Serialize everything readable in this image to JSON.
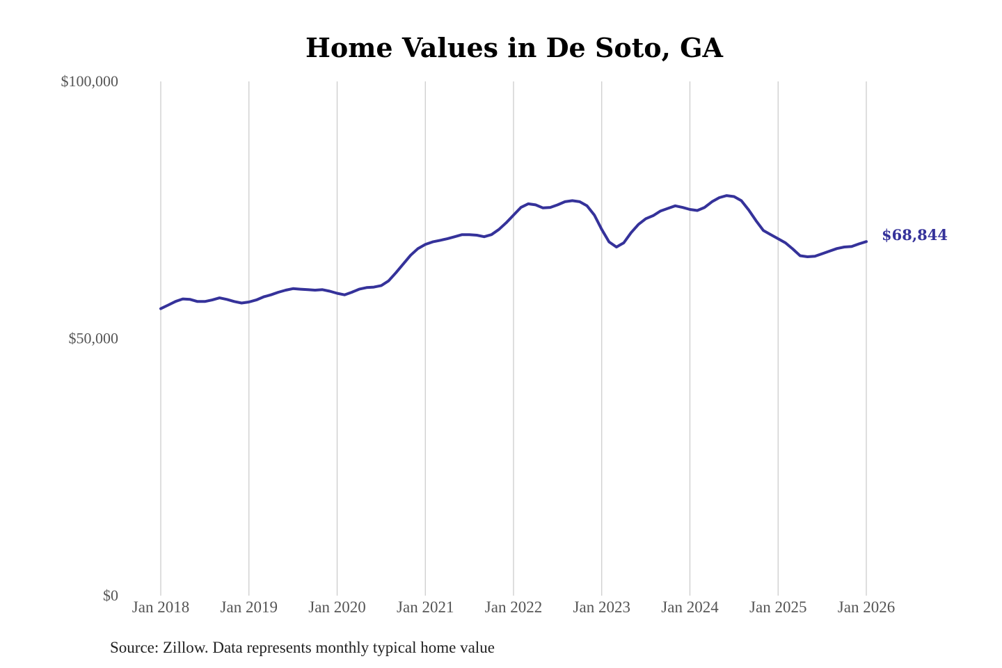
{
  "chart_data": {
    "type": "line",
    "title": "Home Values in De Soto, GA",
    "source": "Source: Zillow. Data represents monthly typical home value",
    "xlabel": "",
    "ylabel": "",
    "ylim": [
      0,
      100000
    ],
    "yticks": [
      0,
      50000,
      100000
    ],
    "ytick_labels": [
      "$0",
      "$50,000",
      "$100,000"
    ],
    "xticks": [
      "2018-01",
      "2019-01",
      "2020-01",
      "2021-01",
      "2022-01",
      "2023-01",
      "2024-01",
      "2025-01",
      "2026-01"
    ],
    "xtick_labels": [
      "Jan 2018",
      "Jan 2019",
      "Jan 2020",
      "Jan 2021",
      "Jan 2022",
      "Jan 2023",
      "Jan 2024",
      "Jan 2025",
      "Jan 2026"
    ],
    "grid": "vertical",
    "line_color": "#35329a",
    "end_label": "$68,844",
    "series": [
      {
        "x": [
          "2018-01",
          "2018-02",
          "2018-03",
          "2018-04",
          "2018-05",
          "2018-06",
          "2018-07",
          "2018-08",
          "2018-09",
          "2018-10",
          "2018-11",
          "2018-12",
          "2019-01",
          "2019-02",
          "2019-03",
          "2019-04",
          "2019-05",
          "2019-06",
          "2019-07",
          "2019-08",
          "2019-09",
          "2019-10",
          "2019-11",
          "2019-12",
          "2020-01",
          "2020-02",
          "2020-03",
          "2020-04",
          "2020-05",
          "2020-06",
          "2020-07",
          "2020-08",
          "2020-09",
          "2020-10",
          "2020-11",
          "2020-12",
          "2021-01",
          "2021-02",
          "2021-03",
          "2021-04",
          "2021-05",
          "2021-06",
          "2021-07",
          "2021-08",
          "2021-09",
          "2021-10",
          "2021-11",
          "2021-12",
          "2022-01",
          "2022-02",
          "2022-03",
          "2022-04",
          "2022-05",
          "2022-06",
          "2022-07",
          "2022-08",
          "2022-09",
          "2022-10",
          "2022-11",
          "2022-12",
          "2023-01",
          "2023-02",
          "2023-03",
          "2023-04",
          "2023-05",
          "2023-06",
          "2023-07",
          "2023-08",
          "2023-09",
          "2023-10",
          "2023-11",
          "2023-12",
          "2024-01",
          "2024-02",
          "2024-03",
          "2024-04",
          "2024-05",
          "2024-06",
          "2024-07",
          "2024-08",
          "2024-09",
          "2024-10",
          "2024-11",
          "2024-12",
          "2025-01",
          "2025-02",
          "2025-03",
          "2025-04",
          "2025-05",
          "2025-06",
          "2025-07",
          "2025-08",
          "2025-09",
          "2025-10",
          "2025-11",
          "2025-12",
          "2026-01"
        ],
        "values": [
          55800,
          56500,
          57200,
          57700,
          57600,
          57200,
          57200,
          57500,
          57900,
          57600,
          57200,
          56900,
          57100,
          57500,
          58100,
          58500,
          59000,
          59400,
          59700,
          59600,
          59500,
          59400,
          59500,
          59200,
          58800,
          58500,
          59000,
          59600,
          59900,
          60000,
          60300,
          61200,
          62800,
          64500,
          66200,
          67500,
          68300,
          68800,
          69100,
          69400,
          69800,
          70200,
          70200,
          70100,
          69800,
          70200,
          71200,
          72500,
          74000,
          75500,
          76200,
          76000,
          75400,
          75500,
          76000,
          76600,
          76800,
          76600,
          75800,
          74000,
          71200,
          68800,
          67800,
          68600,
          70600,
          72200,
          73300,
          73900,
          74800,
          75300,
          75800,
          75500,
          75100,
          74900,
          75500,
          76600,
          77400,
          77800,
          77600,
          76800,
          75000,
          72900,
          71000,
          70200,
          69400,
          68600,
          67400,
          66100,
          65900,
          66000,
          66500,
          67000,
          67500,
          67800,
          67900,
          68400,
          68844
        ]
      }
    ]
  }
}
